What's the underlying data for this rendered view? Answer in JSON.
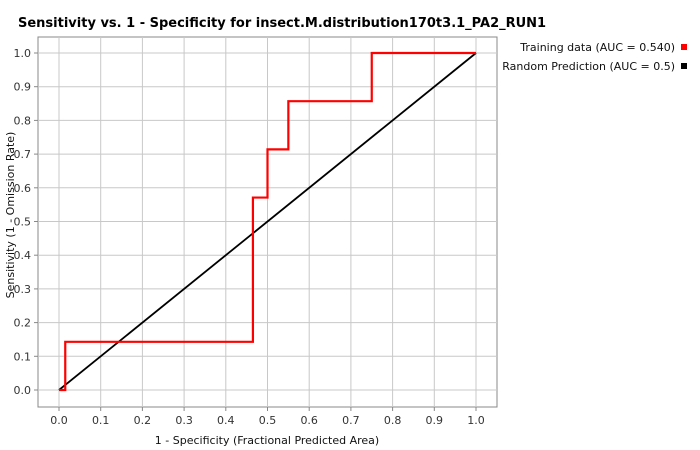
{
  "chart_data": {
    "type": "line",
    "title": "Sensitivity vs. 1 - Specificity for insect.M.distribution170t3.1_PA2_RUN1",
    "xlabel": "1 - Specificity  (Fractional Predicted Area)",
    "ylabel": "Sensitivity  (1 - Omission Rate)",
    "xlim": [
      0,
      1
    ],
    "ylim": [
      0,
      1
    ],
    "xticks": [
      "0.0",
      "0.1",
      "0.2",
      "0.3",
      "0.4",
      "0.5",
      "0.6",
      "0.7",
      "0.8",
      "0.9",
      "1.0"
    ],
    "yticks": [
      "0.0",
      "0.1",
      "0.2",
      "0.3",
      "0.4",
      "0.5",
      "0.6",
      "0.7",
      "0.8",
      "0.9",
      "1.0"
    ],
    "grid": true,
    "legend_position": "top-right",
    "series": [
      {
        "name": "Training data (AUC = 0.540)",
        "color": "#ff0000",
        "x": [
          0.0,
          0.015,
          0.015,
          0.465,
          0.465,
          0.5,
          0.5,
          0.55,
          0.55,
          0.75,
          0.75,
          1.0
        ],
        "y": [
          0.0,
          0.0,
          0.143,
          0.143,
          0.571,
          0.571,
          0.714,
          0.714,
          0.857,
          0.857,
          1.0,
          1.0
        ]
      },
      {
        "name": "Random Prediction (AUC = 0.5)",
        "color": "#000000",
        "x": [
          0.0,
          1.0
        ],
        "y": [
          0.0,
          1.0
        ]
      }
    ]
  }
}
